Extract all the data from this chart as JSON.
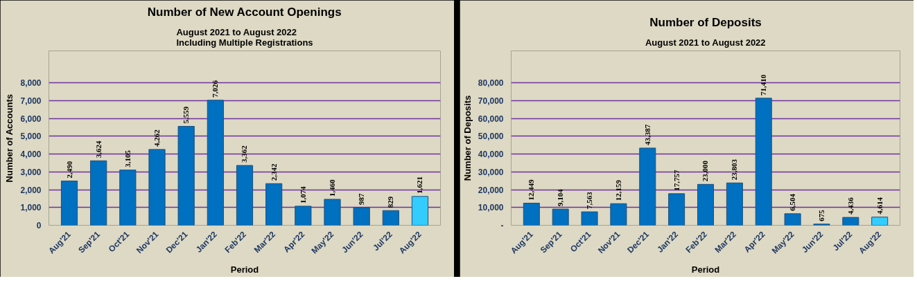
{
  "chart_data": [
    {
      "type": "bar",
      "title": "Number of New Account Openings",
      "subtitle": "August 2021 to August 2022\nIncluding Multiple Registrations",
      "xlabel": "Period",
      "ylabel": "Number of Accounts",
      "categories": [
        "Aug'21",
        "Sep'21",
        "Oct'21",
        "Nov'21",
        "Dec'21",
        "Jan'22",
        "Feb'22",
        "Mar'22",
        "Apr'22",
        "May'22",
        "Jun'22",
        "Jul'22",
        "Aug'22"
      ],
      "values": [
        2490,
        3624,
        3105,
        4262,
        5559,
        7026,
        3362,
        2342,
        1074,
        1460,
        987,
        829,
        1621
      ],
      "value_labels": [
        "2,490",
        "3,624",
        "3,105",
        "4,262",
        "5,559",
        "7,026",
        "3,362",
        "2,342",
        "1,074",
        "1,460",
        "987",
        "829",
        "1,621"
      ],
      "colors": [
        "#0070c0",
        "#0070c0",
        "#0070c0",
        "#0070c0",
        "#0070c0",
        "#0070c0",
        "#0070c0",
        "#0070c0",
        "#0070c0",
        "#0070c0",
        "#0070c0",
        "#0070c0",
        "#33ccff"
      ],
      "ylim": [
        0,
        9800
      ],
      "yticks": [
        0,
        {
          "value": 1000,
          "label": "1,000"
        },
        {
          "value": 2000,
          "label": "2,000"
        },
        {
          "value": 3000,
          "label": "3,000"
        },
        {
          "value": 4000,
          "label": "4,000"
        },
        {
          "value": 5000,
          "label": "5,000"
        },
        {
          "value": 6000,
          "label": "6,000"
        },
        {
          "value": 7000,
          "label": "7,000"
        },
        {
          "value": 8000,
          "label": "8,000"
        }
      ],
      "grid": "y"
    },
    {
      "type": "bar",
      "title": "Number of Deposits",
      "subtitle": "August 2021 to August 2022",
      "xlabel": "Period",
      "ylabel": "Number of Deposits",
      "categories": [
        "Aug'21",
        "Sep'21",
        "Oct'21",
        "Nov'21",
        "Dec'21",
        "Jan'22",
        "Feb'22",
        "Mar'22",
        "Apr'22",
        "May'22",
        "Jun'22",
        "Jul'22",
        "Aug'22"
      ],
      "values": [
        12449,
        9104,
        7563,
        12159,
        43387,
        17757,
        23000,
        23803,
        71410,
        6504,
        675,
        4436,
        4614
      ],
      "value_labels": [
        "12,449",
        "9,104",
        "7,563",
        "12,159",
        "43,387",
        "17,757",
        "23,000",
        "23,803",
        "71,410",
        "6,504",
        "675",
        "4,436",
        "4,614"
      ],
      "colors": [
        "#0070c0",
        "#0070c0",
        "#0070c0",
        "#0070c0",
        "#0070c0",
        "#0070c0",
        "#0070c0",
        "#0070c0",
        "#0070c0",
        "#0070c0",
        "#0070c0",
        "#0070c0",
        "#33ccff"
      ],
      "ylim": [
        0,
        98000
      ],
      "yticks": [
        {
          "value": 0,
          "label": "-"
        },
        {
          "value": 10000,
          "label": "10,000"
        },
        {
          "value": 20000,
          "label": "20,000"
        },
        {
          "value": 30000,
          "label": "30,000"
        },
        {
          "value": 40000,
          "label": "40,000"
        },
        {
          "value": 50000,
          "label": "50,000"
        },
        {
          "value": 60000,
          "label": "60,000"
        },
        {
          "value": 70000,
          "label": "70,000"
        },
        {
          "value": 80000,
          "label": "80,000"
        }
      ],
      "grid": "y"
    }
  ]
}
